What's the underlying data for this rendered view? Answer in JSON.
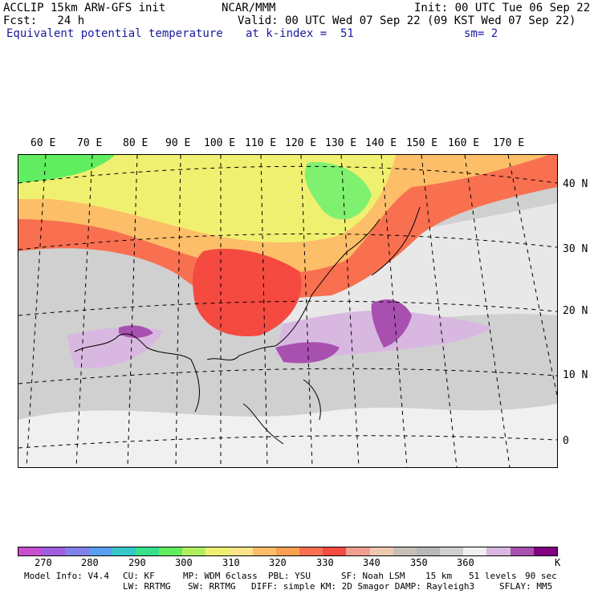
{
  "header": {
    "left_line1": "ACCLIP 15km ARW-GFS init",
    "left_line2": "Fcst:   24 h",
    "center_line1": "NCAR/MMM",
    "init": "Init: 00 UTC Tue 06 Sep 22",
    "valid": "Valid: 00 UTC Wed 07 Sep 22 (09 KST Wed 07 Sep 22)",
    "field": "Equivalent potential temperature",
    "level": "at k-index =  51",
    "smooth": "sm= 2"
  },
  "map": {
    "lon_labels": [
      "60 E",
      "70 E",
      "80 E",
      "90 E",
      "100 E",
      "110 E",
      "120 E",
      "130 E",
      "140 E",
      "150 E",
      "160 E",
      "170 E"
    ],
    "lat_labels": [
      "40 N",
      "30 N",
      "20 N",
      "10 N",
      "0"
    ]
  },
  "colorbar": {
    "unit": "K",
    "labels": [
      "270",
      "280",
      "290",
      "300",
      "310",
      "320",
      "330",
      "340",
      "350",
      "360"
    ],
    "colors": [
      "#c84fd0",
      "#a05ee0",
      "#8080ea",
      "#5a9ef0",
      "#36c8c8",
      "#36e08c",
      "#60ee60",
      "#b0f060",
      "#f0f070",
      "#fde38a",
      "#fcbe68",
      "#f8a050",
      "#f87050",
      "#f44a40",
      "#f0a090",
      "#f0c8b0",
      "#c8c0b8",
      "#b8b8b8",
      "#d0d0d0",
      "#f0f0f0",
      "#d8b8e0",
      "#a850b0",
      "#800080"
    ]
  },
  "footer": {
    "model_info": "Model Info: V4.4",
    "cu": "CU: KF",
    "mp": "MP: WDM 6class",
    "pbl": "PBL: YSU",
    "sf": "SF: Noah LSM",
    "res": "15 km",
    "levels": "51 levels",
    "dt": "90 sec",
    "lw": "LW: RRTMG",
    "sw": "SW: RRTMG",
    "diff": "DIFF: simple KM: 2D Smagor DAMP: Rayleigh3",
    "sflay": "SFLAY: MM5"
  }
}
